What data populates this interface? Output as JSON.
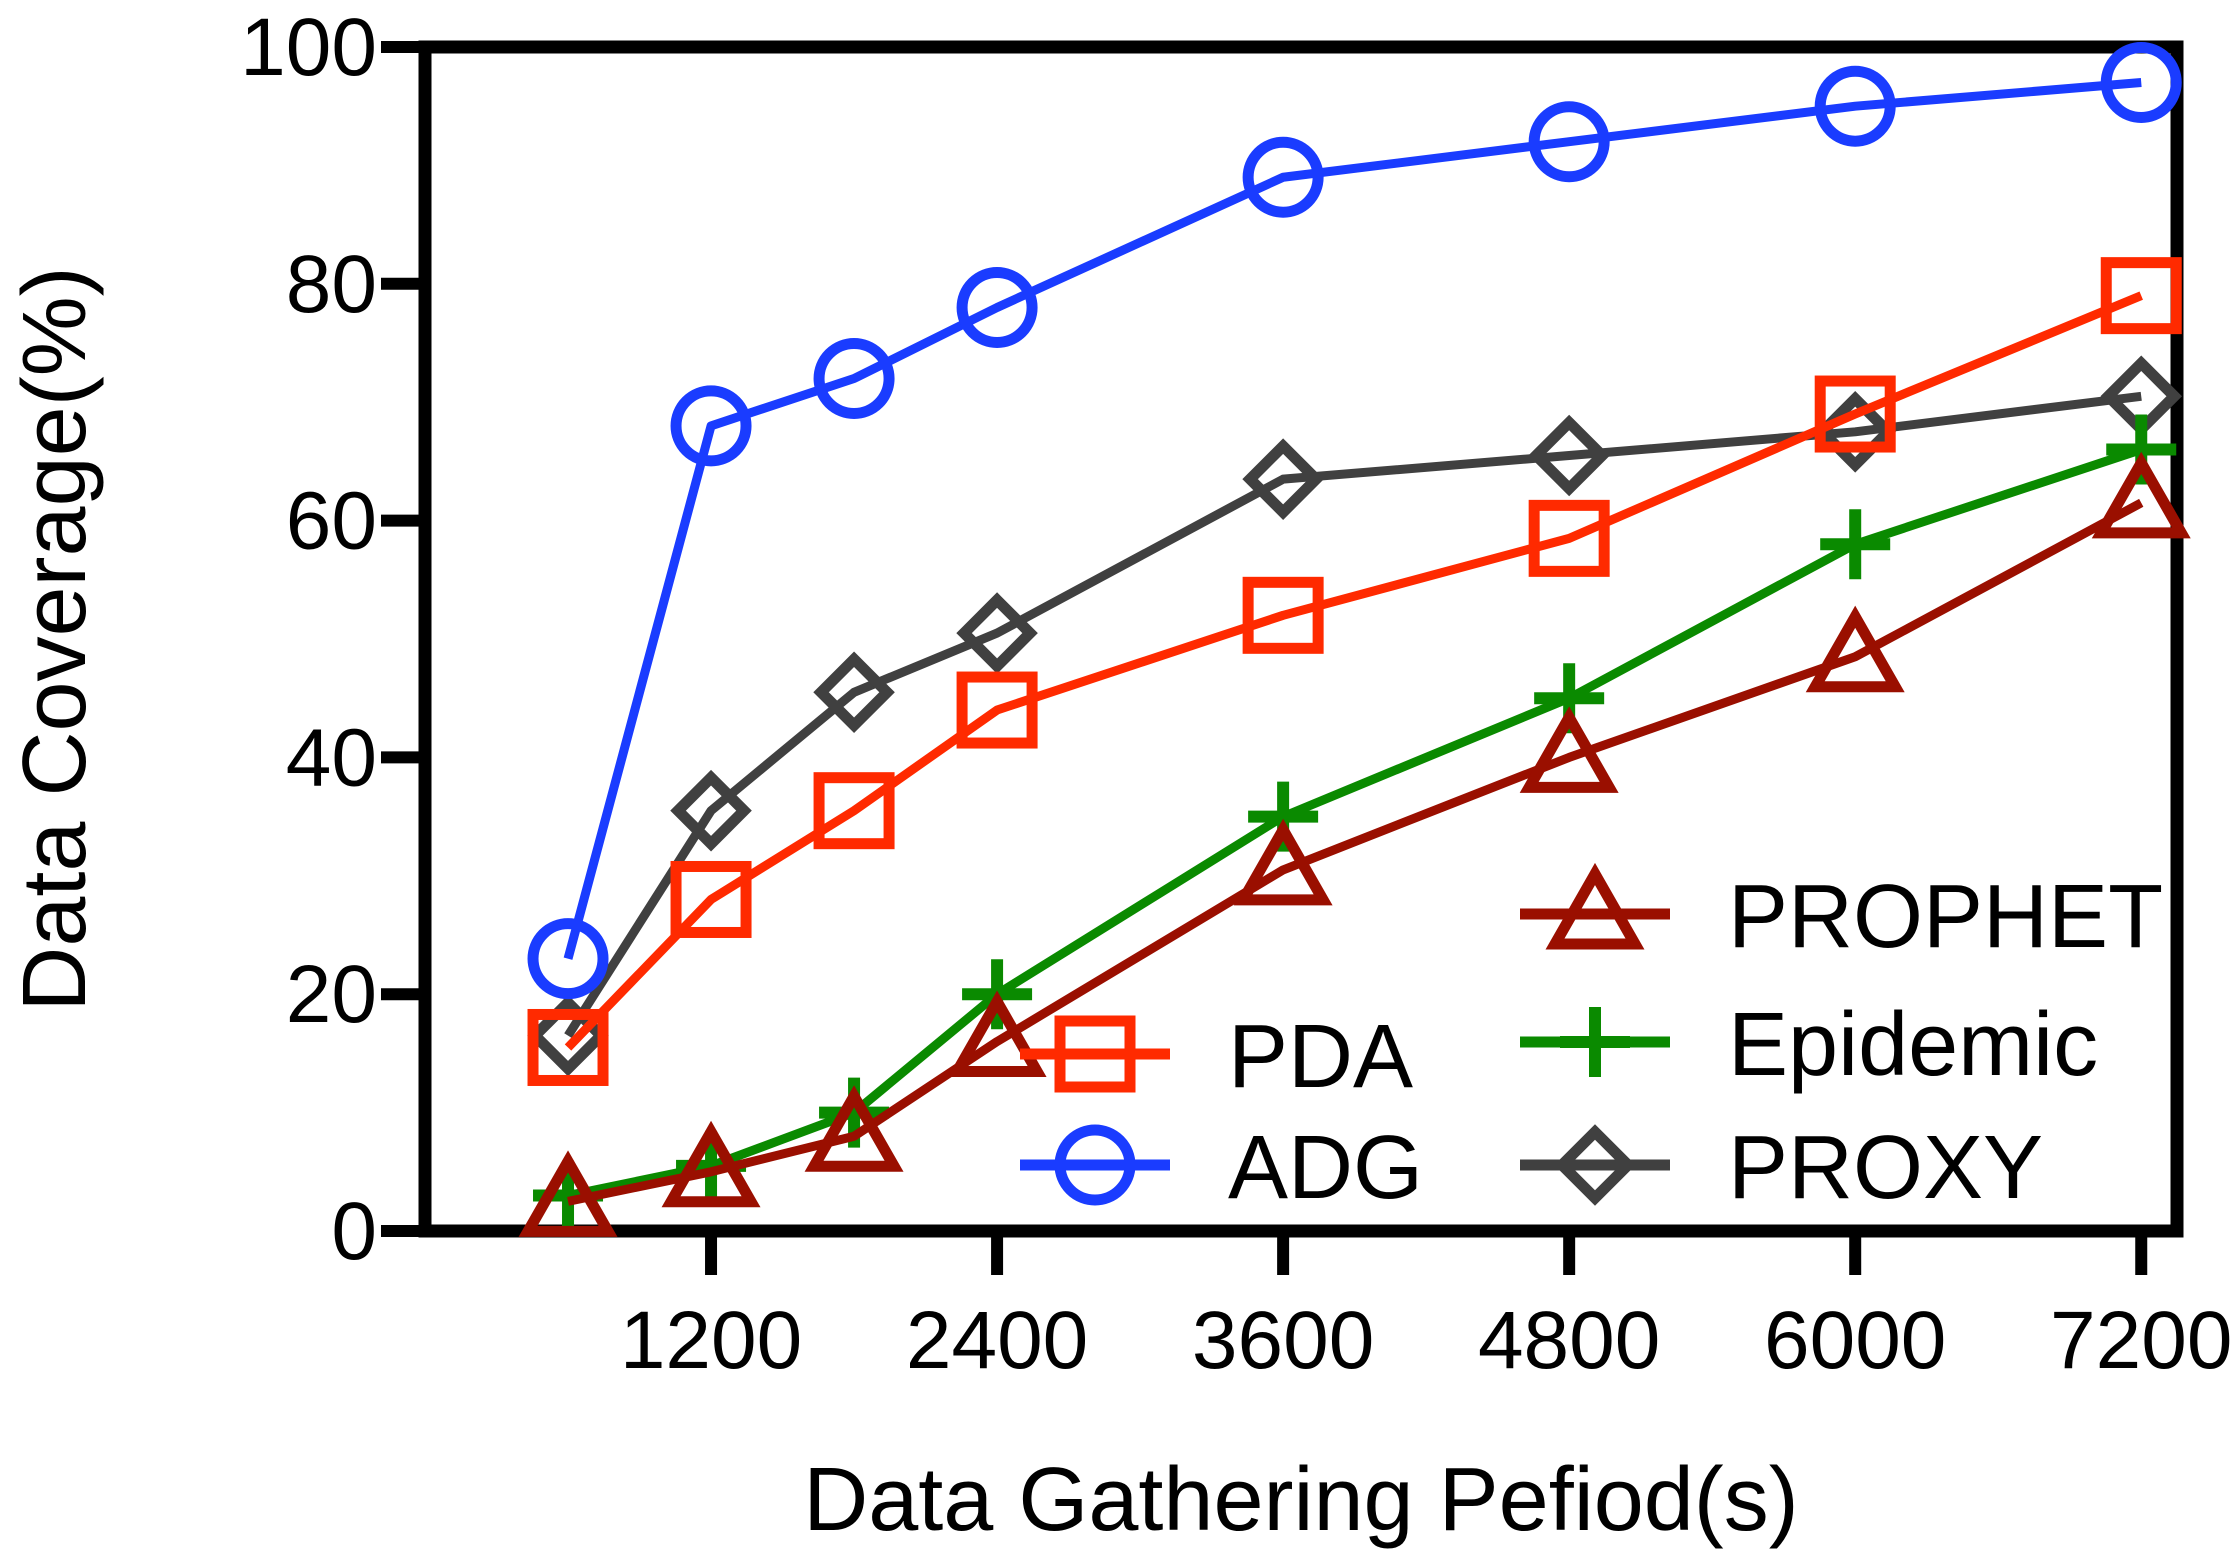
{
  "chart_data": {
    "type": "line",
    "title": "",
    "xlabel": "Data Gathering Pefiod(s)",
    "ylabel": "Data Coverage(%)",
    "xlim": [
      0,
      7350
    ],
    "ylim": [
      0,
      100
    ],
    "x_ticks": [
      1200,
      2400,
      3600,
      4800,
      6000,
      7200
    ],
    "y_ticks": [
      0,
      20,
      40,
      60,
      80,
      100
    ],
    "x_tick_labels": [
      "1200",
      "2400",
      "3600",
      "4800",
      "6000",
      "7200"
    ],
    "y_tick_labels": [
      "0",
      "20",
      "40",
      "60",
      "80",
      "100"
    ],
    "x": [
      600,
      1200,
      1800,
      2400,
      3600,
      4800,
      6000,
      7200
    ],
    "grid": false,
    "legend_position": "bottom-right",
    "series": [
      {
        "name": "PDA",
        "marker": "square",
        "color": "#ff2a00",
        "values": [
          15.5,
          28,
          35.5,
          44,
          52,
          58.5,
          69,
          79
        ]
      },
      {
        "name": "ADG",
        "marker": "circle",
        "color": "#1a3cff",
        "values": [
          23,
          68,
          72,
          78,
          89,
          92,
          95,
          97
        ]
      },
      {
        "name": "PROPHET",
        "marker": "triangle",
        "color": "#9a0f00",
        "values": [
          2.5,
          5,
          8,
          16,
          30.5,
          40,
          48.5,
          61.5
        ]
      },
      {
        "name": "Epidemic",
        "marker": "plus",
        "color": "#0a8a00",
        "values": [
          3,
          5.5,
          10,
          20,
          35,
          45,
          58,
          66
        ]
      },
      {
        "name": "PROXY",
        "marker": "diamond",
        "color": "#404040",
        "values": [
          16.5,
          35.5,
          45.5,
          50.5,
          63.5,
          65.5,
          67.5,
          70.5
        ]
      }
    ]
  }
}
